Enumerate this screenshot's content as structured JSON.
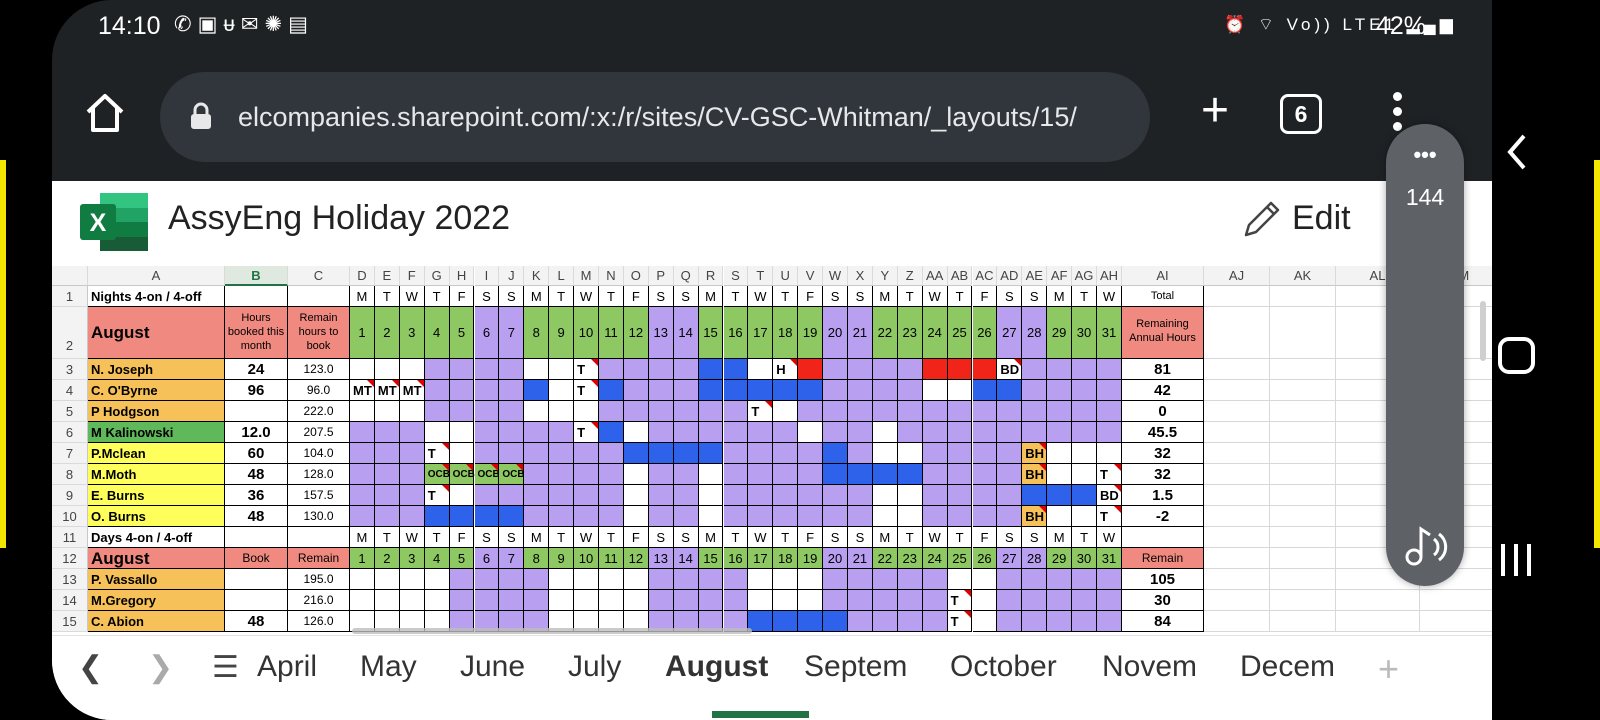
{
  "status": {
    "time": "14:10",
    "battery": "42%",
    "network": "Vo)) LTE1"
  },
  "browser": {
    "url": "elcompanies.sharepoint.com/:x:/r/sites/CV-GSC-Whitman/_layouts/15/",
    "tab_count": "6"
  },
  "excel": {
    "title": "AssyEng Holiday 2022",
    "edit_label": "Edit"
  },
  "fab": {
    "count": "144"
  },
  "colors": {
    "salmon": "#f08a80",
    "orange": "#f6c158",
    "green_name": "#5fb85a",
    "yellow": "#ffff5c",
    "day_green": "#8ec862",
    "purple": "#b89ff0",
    "blue": "#2f62ea",
    "red": "#f02418",
    "excel_green": "#217346"
  },
  "columns": [
    "A",
    "B",
    "C",
    "D",
    "E",
    "F",
    "G",
    "H",
    "I",
    "J",
    "K",
    "L",
    "M",
    "N",
    "O",
    "P",
    "Q",
    "R",
    "S",
    "T",
    "U",
    "V",
    "W",
    "X",
    "Y",
    "Z",
    "AA",
    "AB",
    "AC",
    "AD",
    "AE",
    "AF",
    "AG",
    "AH",
    "AI",
    "AJ",
    "AK",
    "AL",
    "AM"
  ],
  "rows": [
    "1",
    "2",
    "3",
    "4",
    "5",
    "6",
    "7",
    "8",
    "9",
    "10",
    "11",
    "12",
    "13",
    "14",
    "15"
  ],
  "sheet": {
    "nights_title": "Nights 4-on / 4-off",
    "days_title": "Days 4-on / 4-off",
    "month": "August",
    "weekdays": [
      "M",
      "T",
      "W",
      "T",
      "F",
      "S",
      "S",
      "M",
      "T",
      "W",
      "T",
      "F",
      "S",
      "S",
      "M",
      "T",
      "W",
      "T",
      "F",
      "S",
      "S",
      "M",
      "T",
      "W",
      "T",
      "F",
      "S",
      "S",
      "M",
      "T",
      "W"
    ],
    "dates": [
      "1",
      "2",
      "3",
      "4",
      "5",
      "6",
      "7",
      "8",
      "9",
      "10",
      "11",
      "12",
      "13",
      "14",
      "15",
      "16",
      "17",
      "18",
      "19",
      "20",
      "21",
      "22",
      "23",
      "24",
      "25",
      "26",
      "27",
      "28",
      "29",
      "30",
      "31"
    ],
    "hdr_b": "Hours booked this month",
    "hdr_c": "Remain hours to book",
    "hdr_total": "Total",
    "hdr_remaining": "Remaining Annual Hours",
    "hdr_book": "Book",
    "hdr_remain": "Remain",
    "rows": [
      {
        "name": "N. Joseph",
        "b": "24",
        "c": "123.0",
        "ai": "81",
        "labels": {
          "10": "T",
          "18": "H",
          "27": "BD"
        }
      },
      {
        "name": "C. O'Byrne",
        "b": "96",
        "c": "96.0",
        "ai": "42",
        "labels": {
          "1": "MT",
          "2": "MT",
          "3": "MT",
          "10": "T"
        }
      },
      {
        "name": "P Hodgson",
        "b": "",
        "c": "222.0",
        "ai": "0",
        "labels": {
          "17": "T"
        }
      },
      {
        "name": "M Kalinowski",
        "b": "12.0",
        "c": "207.5",
        "ai": "45.5",
        "labels": {
          "10": "T"
        }
      },
      {
        "name": "P.Mclean",
        "b": "60",
        "c": "104.0",
        "ai": "32",
        "labels": {
          "4": "T",
          "28": "BH"
        }
      },
      {
        "name": "M.Moth",
        "b": "48",
        "c": "128.0",
        "ai": "32",
        "labels": {
          "4": "OCB",
          "5": "OCB",
          "6": "OCB",
          "7": "OCB",
          "28": "BH",
          "31": "T"
        }
      },
      {
        "name": "E. Burns",
        "b": "36",
        "c": "157.5",
        "ai": "1.5",
        "labels": {
          "4": "T",
          "31": "BD"
        }
      },
      {
        "name": "O. Burns",
        "b": "48",
        "c": "130.0",
        "ai": "-2",
        "labels": {
          "28": "BH",
          "31": "T"
        }
      },
      {
        "name": "P. Vassallo",
        "b": "",
        "c": "195.0",
        "ai": "105",
        "labels": {}
      },
      {
        "name": "M.Gregory",
        "b": "",
        "c": "216.0",
        "ai": "30",
        "labels": {
          "25": "T"
        }
      },
      {
        "name": "C. Abion",
        "b": "48",
        "c": "126.0",
        "ai": "84",
        "labels": {
          "25": "T"
        }
      }
    ]
  },
  "sheet_tabs": [
    "April",
    "May",
    "June",
    "July",
    "August",
    "Septem",
    "October",
    "Novem",
    "Decem"
  ],
  "active_sheet": "August"
}
